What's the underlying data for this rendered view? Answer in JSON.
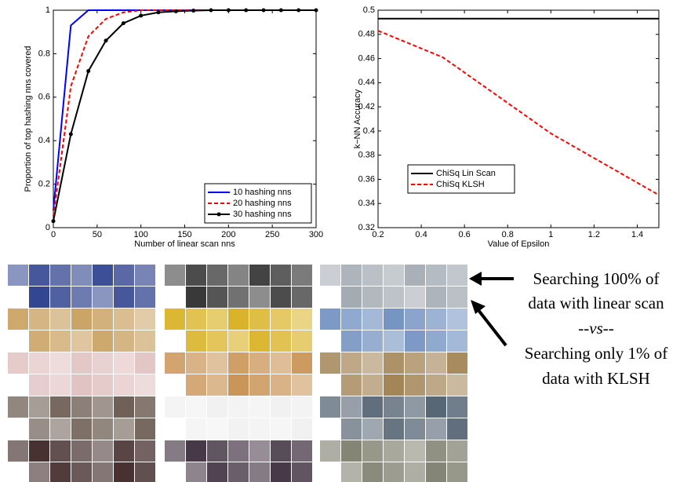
{
  "chart_data": [
    {
      "type": "line",
      "xlabel": "Number of linear scan nns",
      "ylabel": "Proportion of top hashing nns covered",
      "x": [
        0,
        20,
        40,
        60,
        80,
        100,
        120,
        140,
        160,
        180,
        200,
        220,
        240,
        260,
        280,
        300
      ],
      "series": [
        {
          "name": "10 hashing nns",
          "color": "#0000ff",
          "linestyle": "solid",
          "marker": "none",
          "values": [
            0.08,
            0.93,
            1,
            1,
            1,
            1,
            1,
            1,
            1,
            1,
            1,
            1,
            1,
            1,
            1,
            1
          ]
        },
        {
          "name": "20 hashing nns",
          "color": "#ff0000",
          "linestyle": "dashed",
          "marker": "none",
          "values": [
            0.05,
            0.65,
            0.88,
            0.96,
            0.99,
            1,
            1,
            1,
            1,
            1,
            1,
            1,
            1,
            1,
            1,
            1
          ]
        },
        {
          "name": "30 hashing nns",
          "color": "#000000",
          "linestyle": "solid",
          "marker": "dot",
          "values": [
            0.03,
            0.43,
            0.72,
            0.86,
            0.94,
            0.975,
            0.99,
            0.995,
            0.998,
            1,
            1,
            1,
            1,
            1,
            1,
            1
          ]
        }
      ],
      "xlim": [
        0,
        300
      ],
      "xticks": [
        0,
        50,
        100,
        150,
        200,
        250,
        300
      ],
      "ylim": [
        0,
        1
      ],
      "yticks": [
        0,
        0.2,
        0.4,
        0.6,
        0.8,
        1
      ],
      "legend": "lower right"
    },
    {
      "type": "line",
      "xlabel": "Value of Epsilon",
      "ylabel": "k−NN Accuracy",
      "x": [
        0.2,
        0.5,
        1,
        1.5
      ],
      "series": [
        {
          "name": "ChiSq Lin Scan",
          "color": "#000000",
          "linestyle": "solid",
          "marker": "none",
          "values": [
            0.493,
            0.493,
            0.493,
            0.493
          ]
        },
        {
          "name": "ChiSq KLSH",
          "color": "#ff0000",
          "linestyle": "dashed",
          "marker": "none",
          "values": [
            0.483,
            0.461,
            0.398,
            0.347
          ]
        }
      ],
      "xlim": [
        0.2,
        1.5
      ],
      "xticks": [
        0.2,
        0.4,
        0.6,
        0.8,
        1,
        1.2,
        1.4
      ],
      "ylim": [
        0.32,
        0.5
      ],
      "yticks": [
        0.32,
        0.34,
        0.36,
        0.38,
        0.4,
        0.42,
        0.44,
        0.46,
        0.48,
        0.5
      ],
      "legend": "lower left"
    }
  ],
  "annotation": {
    "lines": [
      "Searching 100% of",
      "data with linear scan",
      "--vs--",
      "Searching only 1% of",
      "data with KLSH"
    ]
  }
}
